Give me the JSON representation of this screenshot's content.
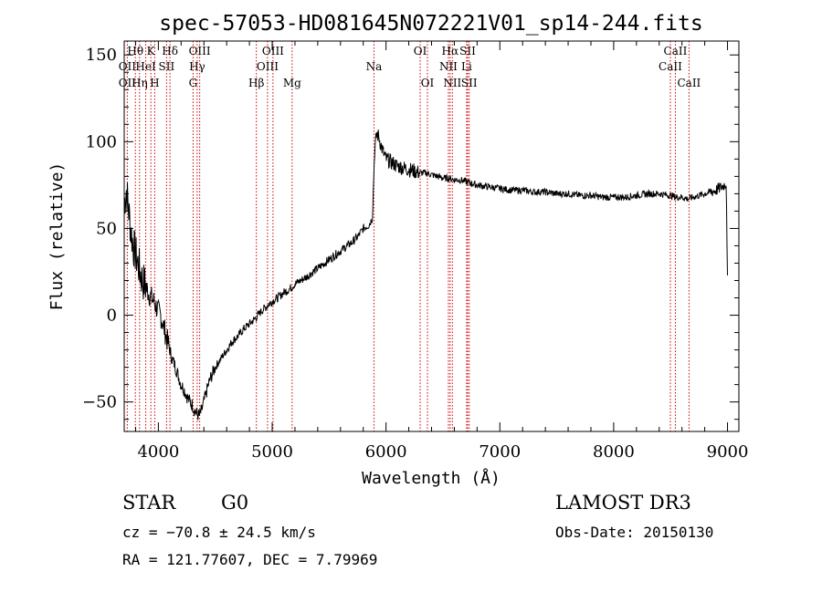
{
  "chart_data": {
    "type": "line",
    "title": "spec-57053-HD081645N072221V01_sp14-244.fits",
    "xlabel": "Wavelength (Å)",
    "ylabel": "Flux (relative)",
    "xlim": [
      3700,
      9100
    ],
    "ylim": [
      -67,
      158
    ],
    "xticks": [
      4000,
      5000,
      6000,
      7000,
      8000,
      9000
    ],
    "yticks": [
      -50,
      0,
      50,
      100,
      150
    ],
    "grid": false,
    "legend": "none",
    "line_color": "#000000",
    "marker_color": "#cc0000",
    "series": [
      {
        "x": [
          3700,
          3720,
          3740,
          3760,
          3780,
          3800,
          3820,
          3840,
          3860,
          3880,
          3900,
          3920,
          3940,
          3960,
          3980,
          4000,
          4020,
          4040,
          4060,
          4080,
          4100,
          4120,
          4140,
          4160,
          4180,
          4200,
          4220,
          4240,
          4260,
          4280,
          4300,
          4320,
          4340,
          4360,
          4380,
          4400,
          4420,
          4440,
          4460,
          4480,
          4500,
          4550,
          4600,
          4650,
          4700,
          4750,
          4800,
          4850,
          4900,
          4950,
          5000,
          5050,
          5100,
          5150,
          5200,
          5300,
          5400,
          5500,
          5600,
          5700,
          5750,
          5800,
          5850,
          5880,
          5900,
          5920,
          5940,
          5960,
          5980,
          6000,
          6050,
          6100,
          6150,
          6200,
          6250,
          6300,
          6350,
          6400,
          6450,
          6500,
          6550,
          6600,
          6650,
          6700,
          6750,
          6800,
          6900,
          7000,
          7100,
          7200,
          7300,
          7400,
          7500,
          7600,
          7700,
          7800,
          7900,
          8000,
          8100,
          8200,
          8300,
          8400,
          8500,
          8550,
          8600,
          8650,
          8700,
          8750,
          8800,
          8850,
          8900,
          8950,
          8990,
          9000
        ],
        "y": [
          65,
          72,
          60,
          48,
          40,
          35,
          30,
          25,
          20,
          18,
          15,
          12,
          10,
          8,
          5,
          2,
          0,
          -5,
          -10,
          -15,
          -20,
          -25,
          -28,
          -32,
          -36,
          -40,
          -42,
          -45,
          -48,
          -50,
          -52,
          -55,
          -57,
          -58,
          -55,
          -50,
          -45,
          -40,
          -36,
          -33,
          -30,
          -25,
          -20,
          -15,
          -12,
          -8,
          -5,
          -2,
          2,
          5,
          8,
          10,
          13,
          15,
          18,
          22,
          27,
          32,
          37,
          42,
          45,
          50,
          52,
          56,
          95,
          105,
          102,
          97,
          93,
          90,
          88,
          86,
          85,
          84,
          83,
          82,
          82,
          81,
          80,
          79,
          79,
          78,
          78,
          77,
          76,
          75,
          74,
          73,
          72,
          72,
          71,
          71,
          70,
          70,
          69,
          69,
          68,
          68,
          68,
          69,
          70,
          70,
          69,
          68,
          68,
          67,
          68,
          69,
          70,
          71,
          72,
          74,
          76,
          20
        ]
      }
    ],
    "lines": [
      {
        "label": "OII",
        "x": 3727,
        "row": 1
      },
      {
        "label": "OII",
        "x": 3727,
        "row": 2
      },
      {
        "label": "Hθ",
        "x": 3798,
        "row": 0
      },
      {
        "label": "Hη",
        "x": 3835,
        "row": 2
      },
      {
        "label": "HeI",
        "x": 3889,
        "row": 1
      },
      {
        "label": "K",
        "x": 3934,
        "row": 0
      },
      {
        "label": "H",
        "x": 3968,
        "row": 2
      },
      {
        "label": "SII",
        "x": 4072,
        "row": 1
      },
      {
        "label": "Hδ",
        "x": 4102,
        "row": 0
      },
      {
        "label": "OIII",
        "x": 4363,
        "row": 0
      },
      {
        "label": "Hγ",
        "x": 4341,
        "row": 1
      },
      {
        "label": "G",
        "x": 4305,
        "row": 2
      },
      {
        "label": "Hβ",
        "x": 4861,
        "row": 2
      },
      {
        "label": "OIII",
        "x": 5007,
        "row": 0
      },
      {
        "label": "OIII",
        "x": 4959,
        "row": 1
      },
      {
        "label": "Mg",
        "x": 5175,
        "row": 2
      },
      {
        "label": "Na",
        "x": 5894,
        "row": 1
      },
      {
        "label": "OI",
        "x": 6300,
        "row": 0
      },
      {
        "label": "OI",
        "x": 6364,
        "row": 2
      },
      {
        "label": "Hα",
        "x": 6563,
        "row": 0
      },
      {
        "label": "NII",
        "x": 6548,
        "row": 1
      },
      {
        "label": "NII",
        "x": 6583,
        "row": 2
      },
      {
        "label": "SII",
        "x": 6717,
        "row": 0
      },
      {
        "label": "Li",
        "x": 6708,
        "row": 1
      },
      {
        "label": "SII",
        "x": 6731,
        "row": 2
      },
      {
        "label": "CaII",
        "x": 8542,
        "row": 0
      },
      {
        "label": "CaII",
        "x": 8498,
        "row": 1
      },
      {
        "label": "CaII",
        "x": 8662,
        "row": 2
      }
    ]
  },
  "info": {
    "object_class": "STAR",
    "subclass": "G0",
    "survey": "LAMOST DR3",
    "cz": "cz = −70.8 ± 24.5 km/s",
    "obs_date": "Obs-Date: 20150130",
    "coords": "RA = 121.77607, DEC =   7.79969"
  }
}
